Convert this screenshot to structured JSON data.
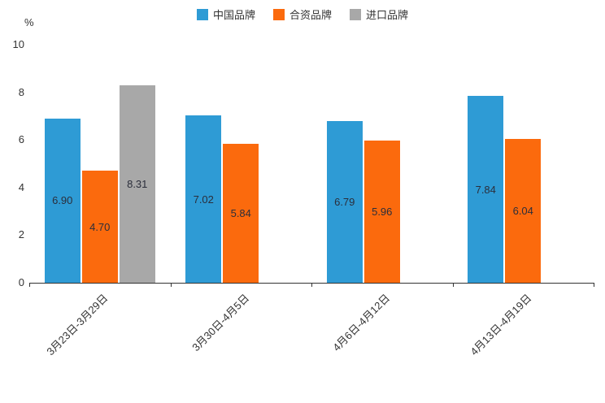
{
  "chart_data": {
    "type": "bar",
    "title": "",
    "ylabel": "%",
    "xlabel": "",
    "ylim": [
      0,
      10
    ],
    "yticks": [
      0,
      2,
      4,
      6,
      8,
      10
    ],
    "grid": false,
    "legend_position": "top",
    "value_decimals": 2,
    "x_label_rotation_deg": 45,
    "categories": [
      "3月23日-3月29日",
      "3月30日-4月5日",
      "4月6日-4月12日",
      "4月13日-4月19日"
    ],
    "series": [
      {
        "name": "中国品牌",
        "color": "#2E9BD5",
        "values": [
          6.9,
          7.02,
          6.79,
          7.84
        ]
      },
      {
        "name": "合资品牌",
        "color": "#FB6A0D",
        "values": [
          4.7,
          5.84,
          5.96,
          6.04
        ]
      },
      {
        "name": "进口品牌",
        "color": "#A8A8A8",
        "values": [
          8.31,
          null,
          null,
          null
        ]
      }
    ]
  }
}
